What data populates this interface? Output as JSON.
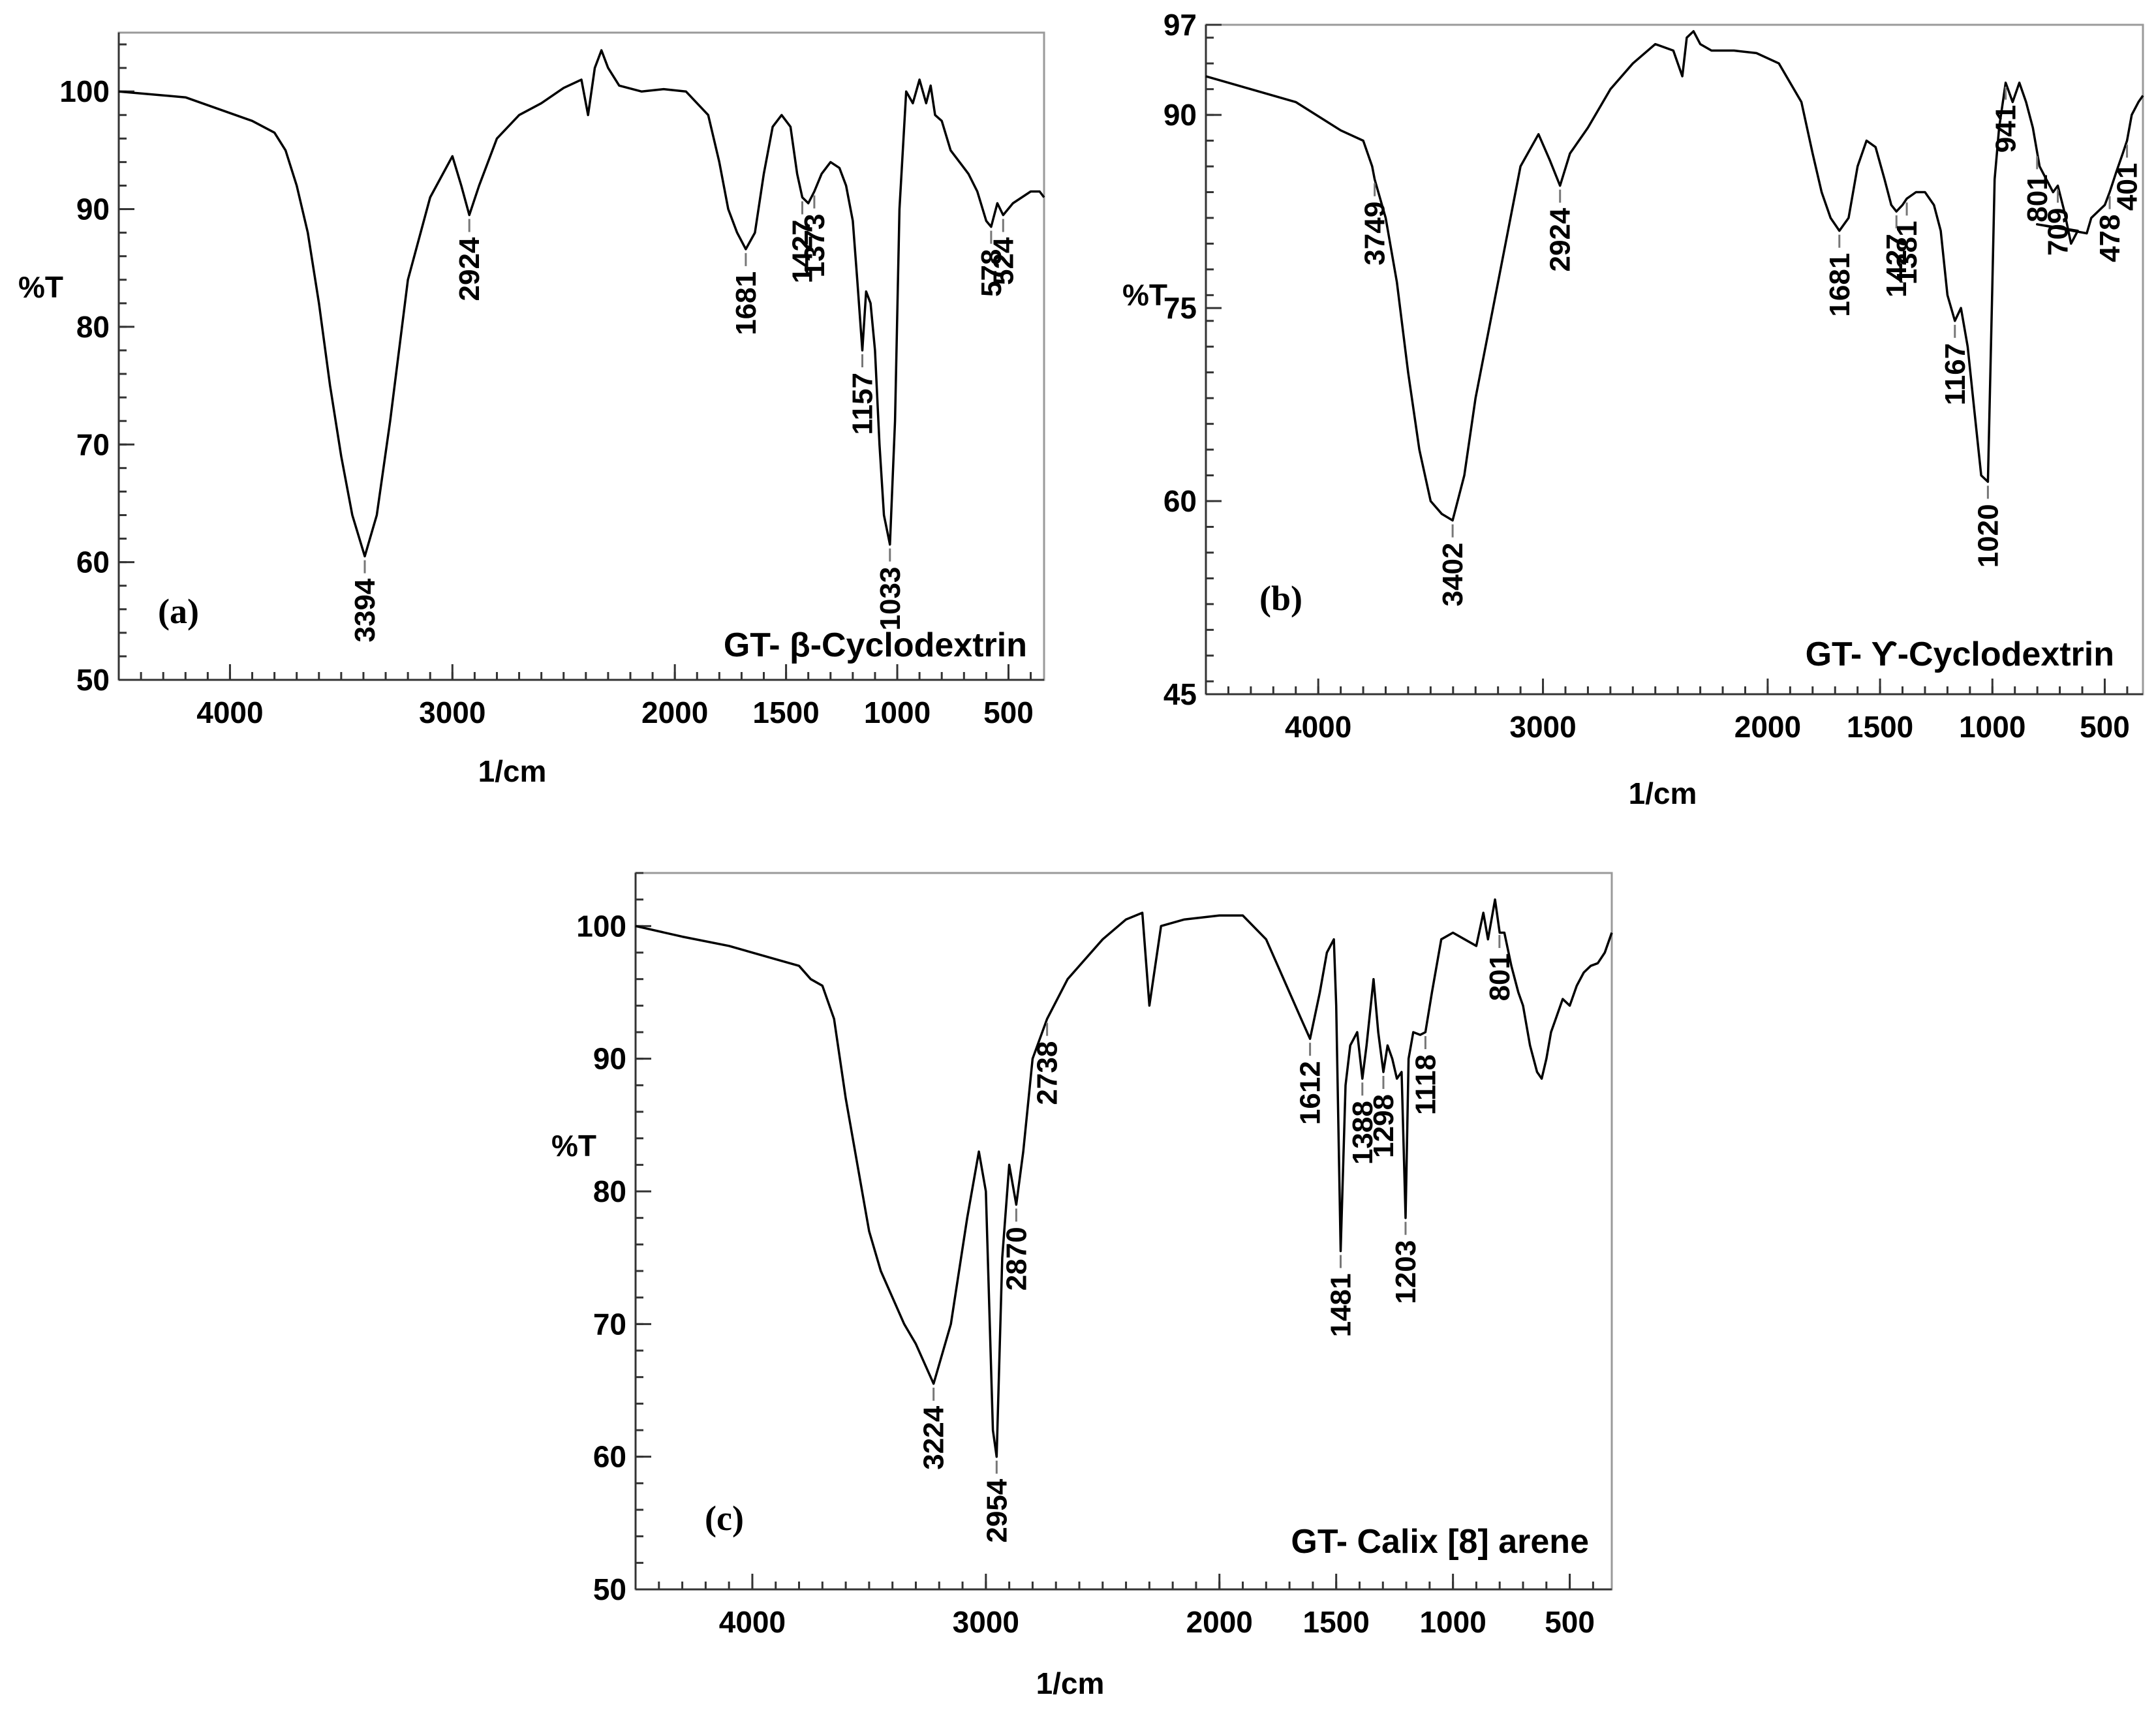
{
  "chart_data": [
    {
      "type": "line",
      "panel_label": "(a)",
      "title": "GT- β-Cyclodextrin",
      "xlabel": "1/cm",
      "ylabel": "%T",
      "xlim": [
        4500,
        340
      ],
      "ylim": [
        50,
        105
      ],
      "xticks": [
        4000,
        3000,
        2000,
        1500,
        1000,
        500
      ],
      "yticks": [
        50,
        60,
        70,
        80,
        90,
        100
      ],
      "series": [
        {
          "name": "GT- β-Cyclodextrin",
          "x": [
            4500,
            4200,
            3900,
            3800,
            3750,
            3700,
            3650,
            3600,
            3550,
            3500,
            3450,
            3394,
            3340,
            3280,
            3200,
            3100,
            3000,
            2960,
            2924,
            2880,
            2800,
            2700,
            2600,
            2500,
            2420,
            2390,
            2360,
            2330,
            2300,
            2250,
            2150,
            2050,
            1950,
            1850,
            1800,
            1760,
            1720,
            1681,
            1640,
            1600,
            1560,
            1520,
            1480,
            1450,
            1427,
            1400,
            1373,
            1340,
            1300,
            1260,
            1230,
            1200,
            1180,
            1157,
            1140,
            1120,
            1100,
            1080,
            1060,
            1033,
            1010,
            990,
            960,
            930,
            900,
            870,
            850,
            830,
            800,
            760,
            720,
            680,
            640,
            600,
            578,
            550,
            524,
            480,
            440,
            400,
            360,
            340
          ],
          "y": [
            100,
            99.5,
            97.5,
            96.5,
            95,
            92,
            88,
            82,
            75,
            69,
            64,
            60.5,
            64,
            72,
            84,
            91,
            94.5,
            92,
            89.5,
            92,
            96,
            98,
            99,
            100.3,
            101,
            98,
            102,
            103.5,
            102,
            100.5,
            100,
            100.2,
            100,
            98,
            94,
            90,
            88,
            86.6,
            88,
            93,
            97,
            98,
            97,
            93,
            91,
            90.5,
            91.5,
            93,
            94,
            93.5,
            92,
            89,
            84,
            78,
            83,
            82,
            78,
            70,
            64,
            61.5,
            72,
            90,
            100,
            99,
            101,
            99,
            100.5,
            98,
            97.5,
            95,
            94,
            93,
            91.5,
            89,
            88.5,
            90.5,
            89.5,
            90.5,
            91,
            91.5,
            91.5,
            91
          ]
        }
      ],
      "peak_labels": [
        {
          "x": 3394,
          "text": "3394"
        },
        {
          "x": 2924,
          "text": "2924"
        },
        {
          "x": 1681,
          "text": "1681"
        },
        {
          "x": 1427,
          "text": "1427"
        },
        {
          "x": 1373,
          "text": "1373"
        },
        {
          "x": 1157,
          "text": "1157"
        },
        {
          "x": 1033,
          "text": "1033"
        },
        {
          "x": 578,
          "text": "578"
        },
        {
          "x": 524,
          "text": "524"
        }
      ]
    },
    {
      "type": "line",
      "panel_label": "(b)",
      "title": "GT- ϒ-Cyclodextrin",
      "xlabel": "1/cm",
      "ylabel": "%T",
      "xlim": [
        4500,
        330
      ],
      "ylim": [
        45,
        97
      ],
      "xticks": [
        4000,
        3000,
        2000,
        1500,
        1000,
        500
      ],
      "yticks": [
        45,
        60,
        75,
        90,
        97
      ],
      "series": [
        {
          "name": "GT- ϒ-Cyclodextrin",
          "x": [
            4500,
            4300,
            4100,
            3900,
            3800,
            3760,
            3749,
            3700,
            3650,
            3600,
            3550,
            3500,
            3450,
            3402,
            3350,
            3300,
            3200,
            3100,
            3020,
            2970,
            2924,
            2880,
            2800,
            2700,
            2600,
            2500,
            2420,
            2380,
            2360,
            2330,
            2300,
            2250,
            2150,
            2050,
            1950,
            1850,
            1800,
            1760,
            1720,
            1681,
            1640,
            1600,
            1560,
            1520,
            1480,
            1450,
            1427,
            1400,
            1381,
            1340,
            1300,
            1260,
            1230,
            1200,
            1167,
            1140,
            1110,
            1080,
            1050,
            1020,
            1000,
            990,
            970,
            941,
            910,
            880,
            850,
            820,
            790,
            760,
            730,
            709,
            680,
            650,
            620,
            801,
            580,
            560,
            530,
            500,
            478,
            450,
            420,
            401,
            380,
            350,
            330
          ],
          "y": [
            93,
            92,
            91,
            88.8,
            88,
            86,
            85,
            82,
            77,
            70,
            64,
            60,
            59,
            58.5,
            62,
            68,
            77,
            86,
            88.5,
            86.5,
            84.5,
            87,
            89,
            92,
            94,
            95.5,
            95,
            93,
            96,
            96.5,
            95.5,
            95,
            95,
            94.8,
            94,
            91,
            87,
            84,
            82,
            81,
            82,
            86,
            88,
            87.5,
            85,
            83,
            82.5,
            83,
            83.5,
            84,
            84,
            83,
            81,
            76,
            74,
            75,
            72,
            67,
            62,
            61.5,
            77,
            85,
            89,
            92.5,
            91,
            92.5,
            91,
            89,
            86,
            85,
            84,
            84.5,
            82.5,
            80,
            81,
            81.5,
            80.8,
            82,
            82.5,
            83,
            84,
            85.5,
            87,
            88,
            90,
            91,
            91.5
          ]
        }
      ],
      "peak_labels": [
        {
          "x": 3749,
          "text": "3749"
        },
        {
          "x": 3402,
          "text": "3402"
        },
        {
          "x": 2924,
          "text": "2924"
        },
        {
          "x": 1681,
          "text": "1681"
        },
        {
          "x": 1427,
          "text": "1427"
        },
        {
          "x": 1381,
          "text": "1381"
        },
        {
          "x": 1167,
          "text": "1167"
        },
        {
          "x": 1020,
          "text": "1020"
        },
        {
          "x": 941,
          "text": "941"
        },
        {
          "x": 709,
          "text": "709"
        },
        {
          "x": 801,
          "text": "801"
        },
        {
          "x": 478,
          "text": "478"
        },
        {
          "x": 401,
          "text": "401"
        }
      ]
    },
    {
      "type": "line",
      "panel_label": "(c)",
      "title": "GT- Calix [8] arene",
      "xlabel": "1/cm",
      "ylabel": "%T",
      "xlim": [
        4500,
        320
      ],
      "ylim": [
        50,
        104
      ],
      "xticks": [
        4000,
        3000,
        2000,
        1500,
        1000,
        500
      ],
      "yticks": [
        50,
        60,
        70,
        80,
        90,
        100
      ],
      "series": [
        {
          "name": "GT- Calix [8] arene",
          "x": [
            4500,
            4300,
            4100,
            3900,
            3800,
            3750,
            3700,
            3650,
            3600,
            3550,
            3500,
            3450,
            3400,
            3350,
            3300,
            3224,
            3150,
            3080,
            3030,
            3000,
            2970,
            2954,
            2930,
            2900,
            2870,
            2840,
            2800,
            2738,
            2650,
            2500,
            2400,
            2330,
            2300,
            2250,
            2150,
            2000,
            1900,
            1800,
            1750,
            1700,
            1650,
            1612,
            1570,
            1540,
            1510,
            1500,
            1481,
            1460,
            1440,
            1410,
            1388,
            1370,
            1340,
            1320,
            1298,
            1280,
            1260,
            1240,
            1220,
            1203,
            1190,
            1170,
            1140,
            1118,
            1090,
            1050,
            1000,
            950,
            900,
            870,
            850,
            820,
            800,
            780,
            750,
            720,
            700,
            670,
            640,
            620,
            600,
            580,
            560,
            530,
            500,
            470,
            440,
            410,
            380,
            350,
            320
          ],
          "y": [
            100,
            99.2,
            98.5,
            97.5,
            97,
            96,
            95.5,
            93,
            87,
            82,
            77,
            74,
            72,
            70,
            68.5,
            65.5,
            70,
            78,
            83,
            80,
            62,
            60,
            75,
            82,
            79,
            83,
            90,
            93,
            96,
            99,
            100.5,
            101,
            94,
            100,
            100.5,
            100.8,
            100.8,
            99,
            97,
            95,
            93,
            91.5,
            95,
            98,
            99,
            94,
            75.5,
            88,
            91,
            92,
            88.5,
            91,
            96,
            92,
            89,
            91,
            90,
            88.5,
            89,
            78,
            90,
            92,
            91.8,
            92,
            95,
            99,
            99.5,
            99,
            98.5,
            101,
            99,
            102,
            99.5,
            99.5,
            97,
            95,
            94,
            91,
            89,
            88.5,
            90,
            92,
            93,
            94.5,
            94,
            95.5,
            96.5,
            97,
            97.2,
            98,
            99.5
          ]
        }
      ],
      "peak_labels": [
        {
          "x": 3224,
          "text": "3224"
        },
        {
          "x": 2954,
          "text": "2954"
        },
        {
          "x": 2870,
          "text": "2870"
        },
        {
          "x": 2738,
          "text": "2738"
        },
        {
          "x": 1612,
          "text": "1612"
        },
        {
          "x": 1481,
          "text": "1481"
        },
        {
          "x": 1388,
          "text": "1388"
        },
        {
          "x": 1298,
          "text": "1298"
        },
        {
          "x": 1203,
          "text": "1203"
        },
        {
          "x": 1118,
          "text": "1118"
        },
        {
          "x": 801,
          "text": "801"
        }
      ]
    }
  ]
}
